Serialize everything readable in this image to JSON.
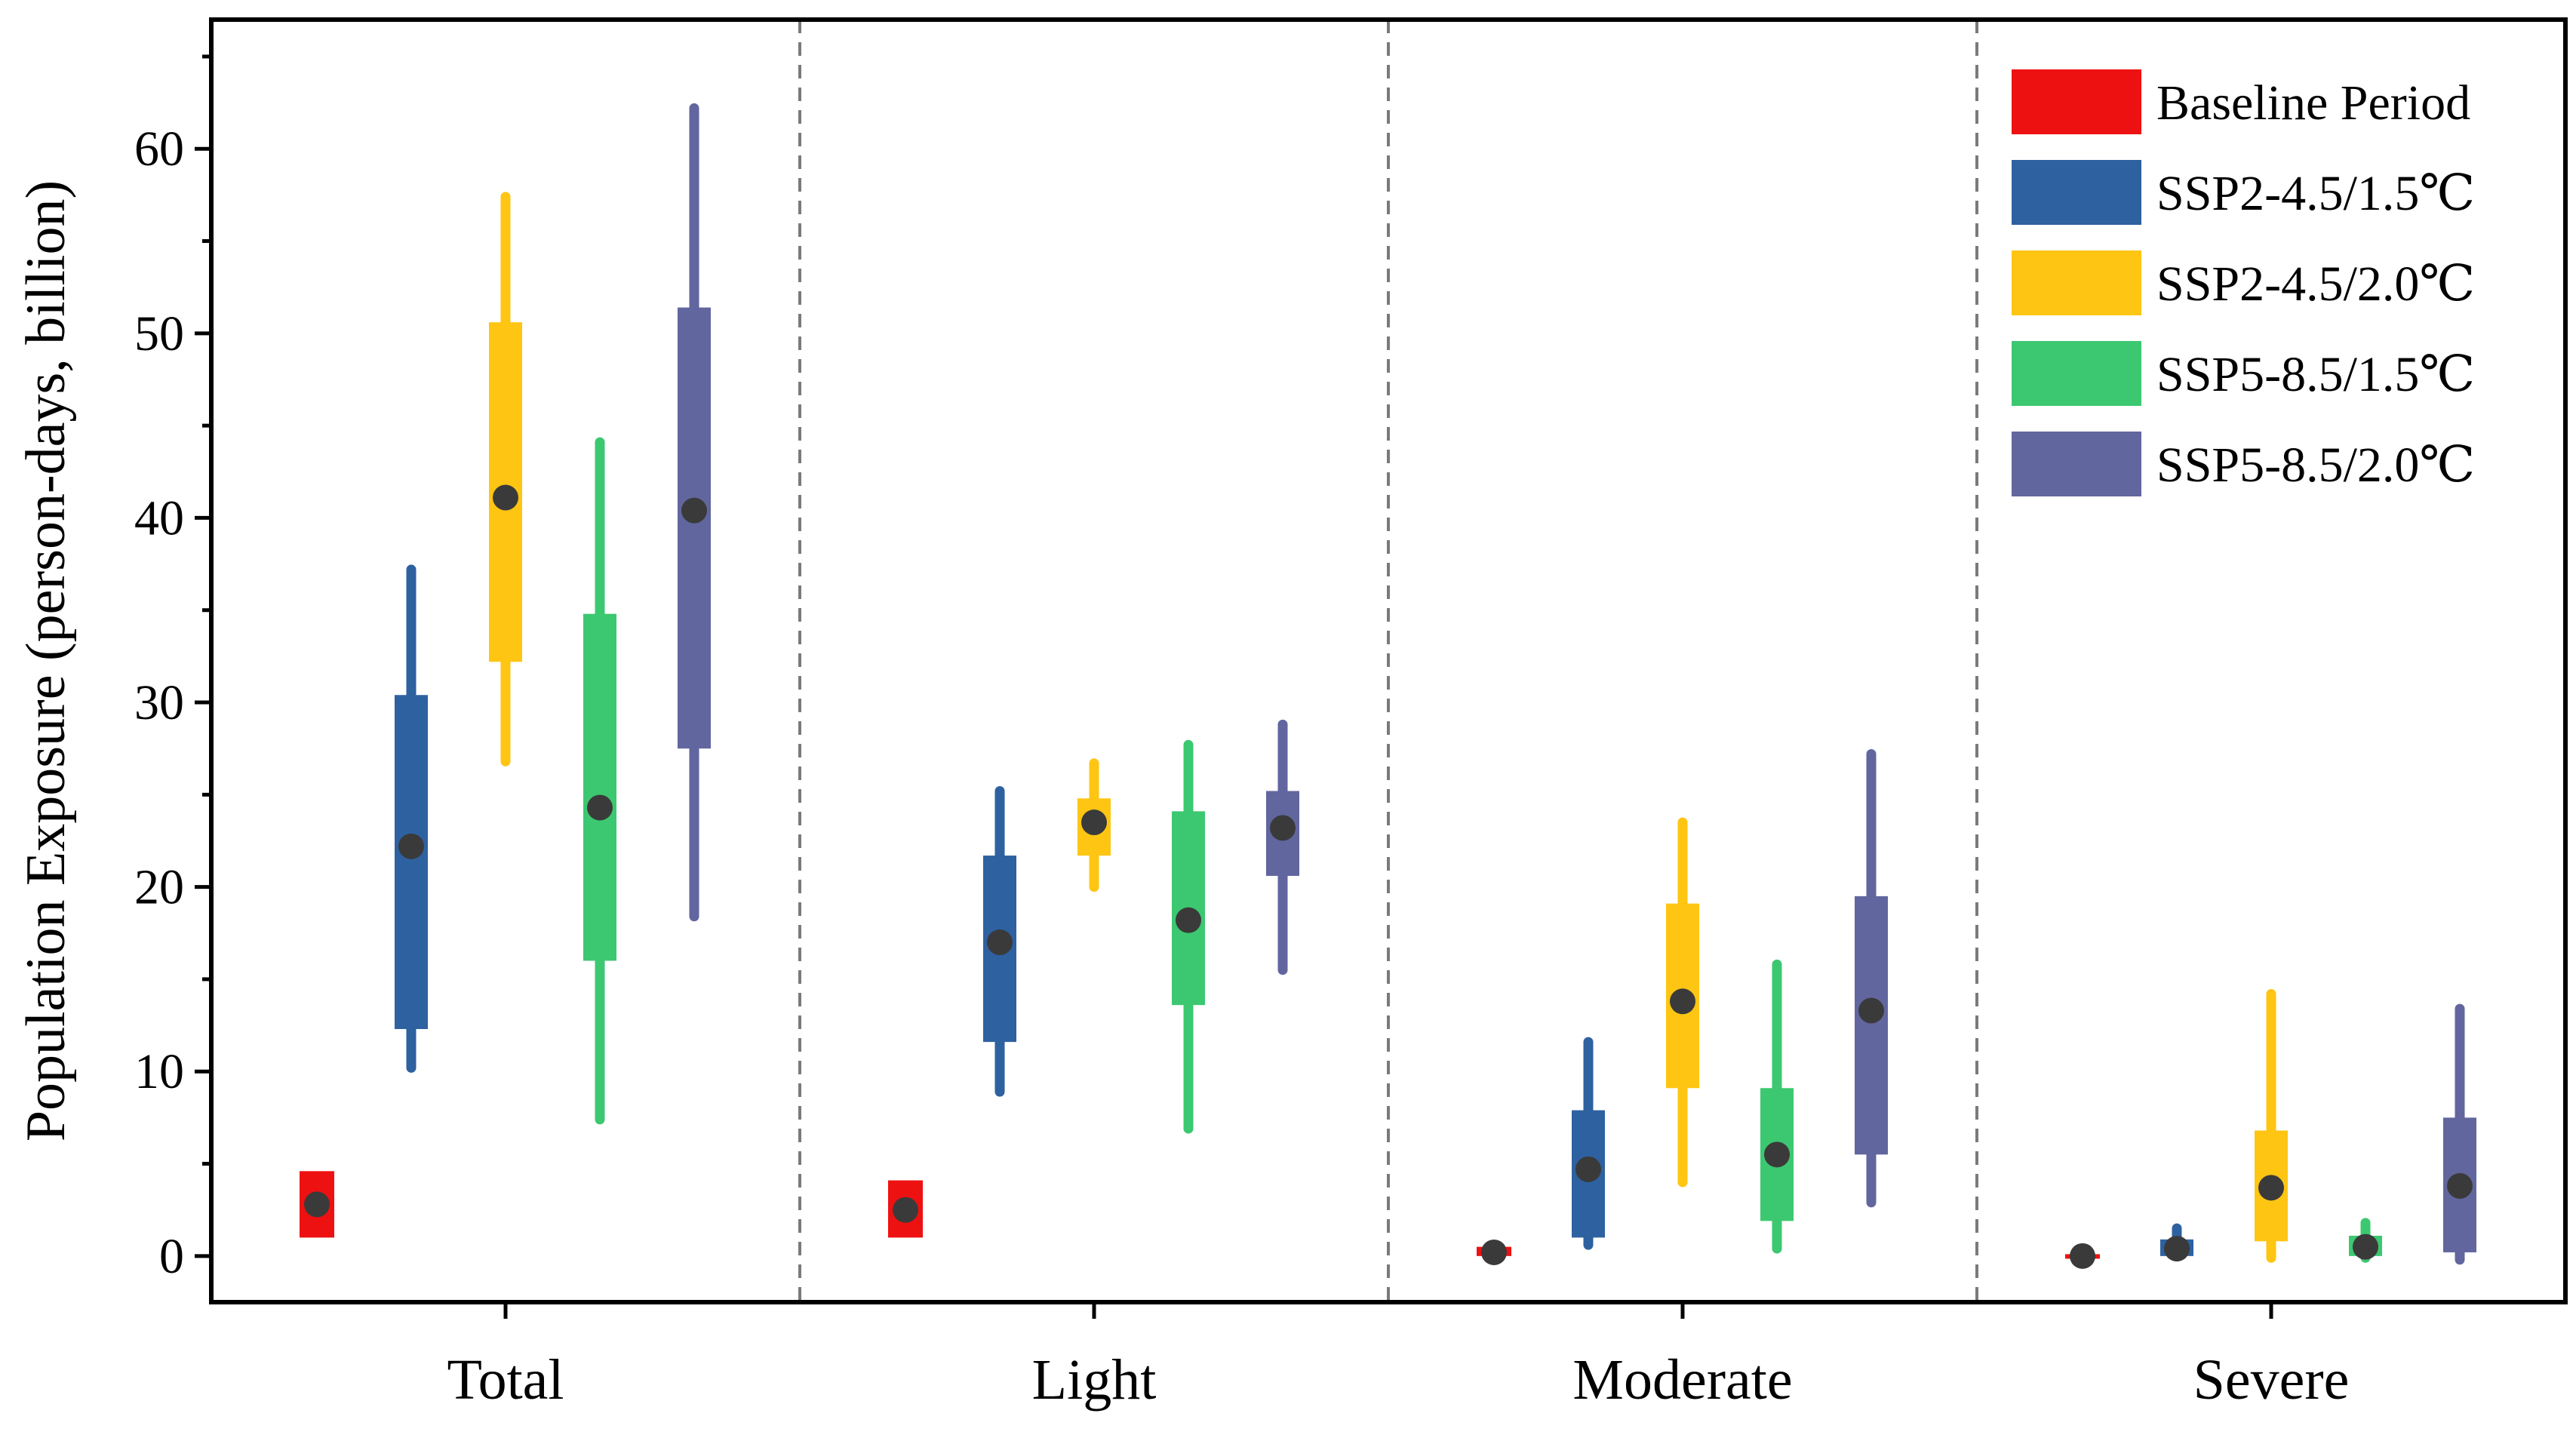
{
  "chart_data": {
    "type": "box",
    "title": "",
    "xlabel": "",
    "ylabel": "Population Exposure (person-days, billion)",
    "ylim": [
      -2.5,
      67
    ],
    "yticks": [
      0,
      10,
      20,
      30,
      40,
      50,
      60
    ],
    "ytick_labels": [
      "0",
      "10",
      "20",
      "30",
      "40",
      "50",
      "60"
    ],
    "categories": [
      "Total",
      "Light",
      "Moderate",
      "Severe"
    ],
    "legend_position": "top-right",
    "series": [
      {
        "name": "Baseline Period",
        "color": "#ee1111",
        "whisker_low": [
          1.0,
          1.0,
          0.0,
          0.0
        ],
        "q1": [
          1.0,
          1.0,
          0.0,
          0.0
        ],
        "median": [
          2.8,
          2.5,
          0.2,
          0.0
        ],
        "q3": [
          4.6,
          4.1,
          0.5,
          0.1
        ],
        "whisker_high": [
          4.6,
          4.1,
          0.5,
          0.1
        ]
      },
      {
        "name": "SSP2-4.5/1.5℃",
        "color": "#2e61a0",
        "whisker_low": [
          10.2,
          8.9,
          0.6,
          0.0
        ],
        "q1": [
          12.3,
          11.6,
          1.0,
          0.0
        ],
        "median": [
          22.2,
          17.0,
          4.7,
          0.4
        ],
        "q3": [
          30.4,
          21.7,
          7.9,
          0.9
        ],
        "whisker_high": [
          37.2,
          25.2,
          11.6,
          1.5
        ]
      },
      {
        "name": "SSP2-4.5/2.0℃",
        "color": "#fec513",
        "whisker_low": [
          26.8,
          20.0,
          4.0,
          -0.1
        ],
        "q1": [
          32.2,
          21.7,
          9.1,
          0.8
        ],
        "median": [
          41.1,
          23.5,
          13.8,
          3.7
        ],
        "q3": [
          50.6,
          24.8,
          19.1,
          6.8
        ],
        "whisker_high": [
          57.4,
          26.7,
          23.5,
          14.2
        ]
      },
      {
        "name": "SSP5-8.5/1.5℃",
        "color": "#3cc870",
        "whisker_low": [
          7.4,
          6.9,
          0.4,
          -0.1
        ],
        "q1": [
          16.0,
          13.6,
          1.9,
          0.0
        ],
        "median": [
          24.3,
          18.2,
          5.5,
          0.5
        ],
        "q3": [
          34.8,
          24.1,
          9.1,
          1.1
        ],
        "whisker_high": [
          44.1,
          27.7,
          15.8,
          1.8
        ]
      },
      {
        "name": "SSP5-8.5/2.0℃",
        "color": "#62669e",
        "whisker_low": [
          18.4,
          15.5,
          2.9,
          -0.2
        ],
        "q1": [
          27.5,
          20.6,
          5.5,
          0.2
        ],
        "median": [
          40.4,
          23.2,
          13.3,
          3.8
        ],
        "q3": [
          51.4,
          25.2,
          19.5,
          7.5
        ],
        "whisker_high": [
          62.2,
          28.8,
          27.2,
          13.4
        ]
      }
    ]
  }
}
